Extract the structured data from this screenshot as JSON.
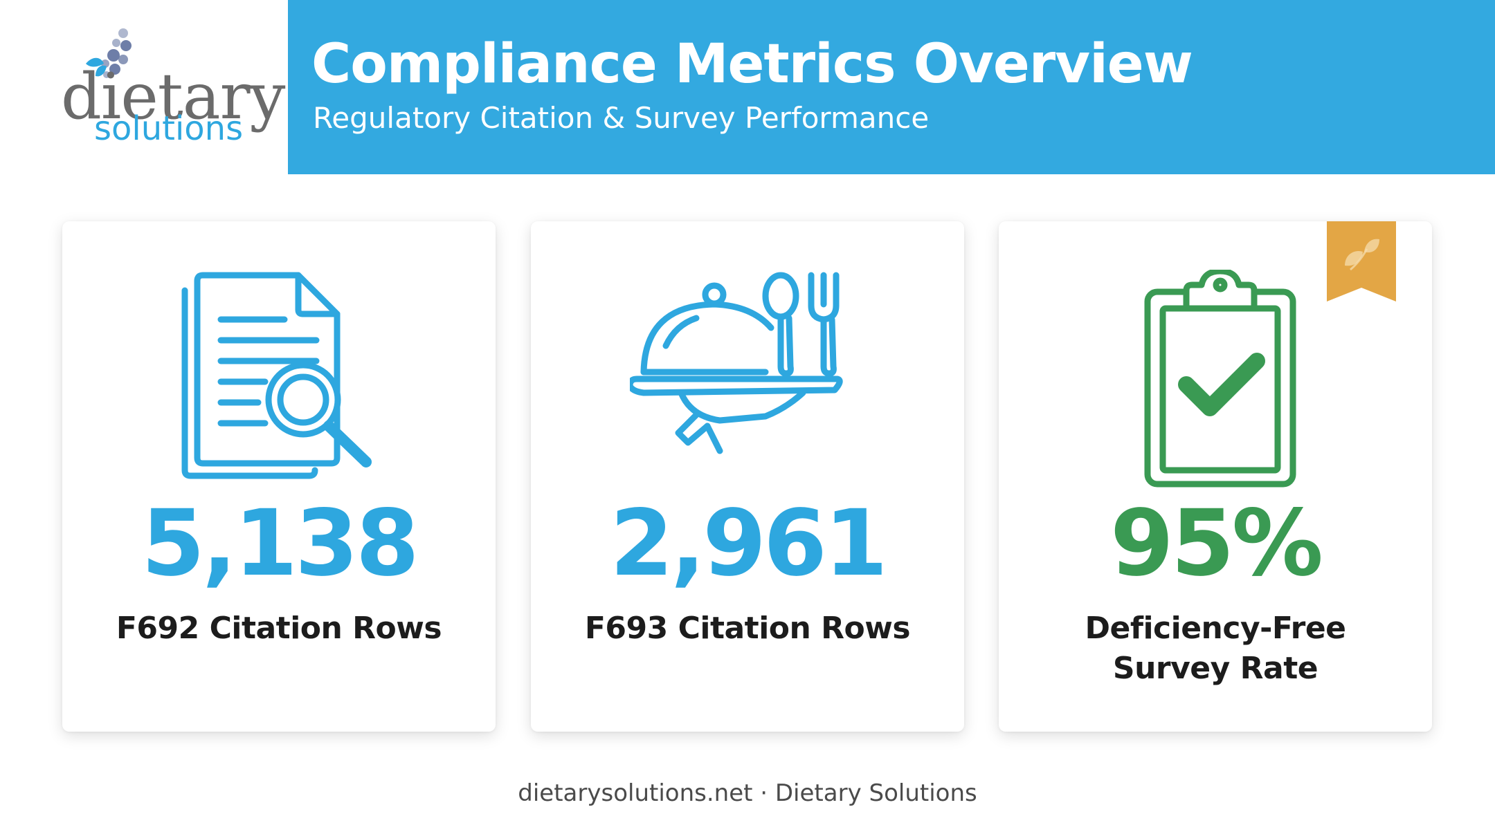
{
  "brand": {
    "logo_main": "dietary",
    "logo_sub": "solutions",
    "dots_color": "#6e7ea8",
    "leaf_color": "#2ea7df",
    "wordmark_color": "#6b6b6b",
    "sub_color": "#2ea7df"
  },
  "header": {
    "title": "Compliance Metrics Overview",
    "subtitle": "Regulatory Citation & Survey Performance",
    "background": "#33a9e0"
  },
  "cards": [
    {
      "value": "5,138",
      "label_lines": [
        "F692 Citation Rows"
      ],
      "icon": "document-search-icon",
      "color": "#2ea7df"
    },
    {
      "value": "2,961",
      "label_lines": [
        "F693 Citation Rows"
      ],
      "icon": "cloche-tray-utensils-icon",
      "color": "#2ea7df"
    },
    {
      "value": "95%",
      "label_lines": [
        "Deficiency-Free",
        "Survey Rate"
      ],
      "icon": "clipboard-check-icon",
      "color": "#3a9a53",
      "badge": {
        "icon": "leaf-ribbon-icon",
        "color": "#e3a645"
      }
    }
  ],
  "footer": {
    "text": "dietarysolutions.net · Dietary Solutions"
  }
}
